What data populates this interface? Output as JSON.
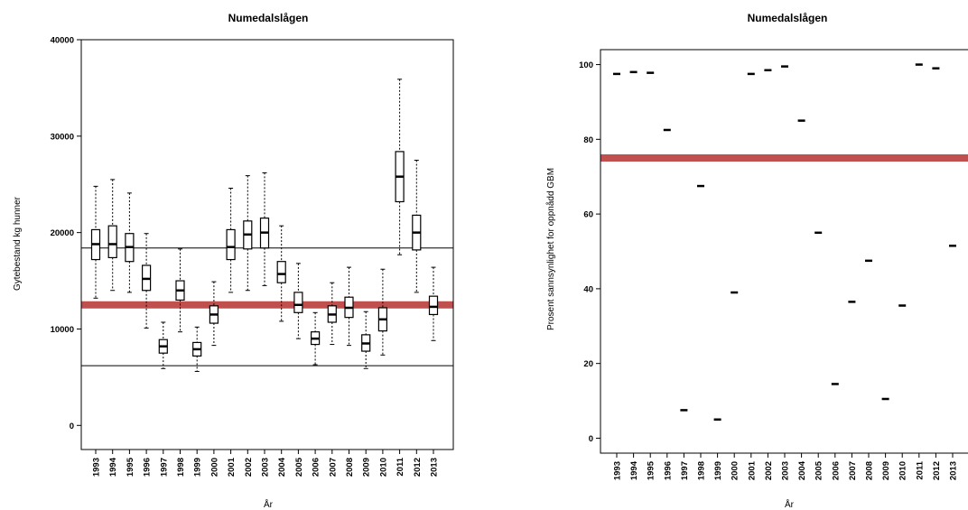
{
  "chart_data": [
    {
      "type": "box",
      "title": "Numedalslågen",
      "xlabel": "År",
      "ylabel": "Gytebestand kg hunner",
      "categories": [
        "1993",
        "1994",
        "1995",
        "1996",
        "1997",
        "1998",
        "1999",
        "2000",
        "2001",
        "2002",
        "2003",
        "2004",
        "2005",
        "2006",
        "2007",
        "2008",
        "2009",
        "2010",
        "2011",
        "2012",
        "2013"
      ],
      "boxes": [
        {
          "min": 13200,
          "q1": 17200,
          "median": 18800,
          "q3": 20300,
          "max": 24800
        },
        {
          "min": 14000,
          "q1": 17400,
          "median": 18800,
          "q3": 20700,
          "max": 25500
        },
        {
          "min": 13800,
          "q1": 17000,
          "median": 18500,
          "q3": 19900,
          "max": 24100
        },
        {
          "min": 10100,
          "q1": 14000,
          "median": 15200,
          "q3": 16600,
          "max": 19900
        },
        {
          "min": 5900,
          "q1": 7500,
          "median": 8200,
          "q3": 8900,
          "max": 10700
        },
        {
          "min": 9700,
          "q1": 13000,
          "median": 14000,
          "q3": 15000,
          "max": 18300
        },
        {
          "min": 5600,
          "q1": 7200,
          "median": 7900,
          "q3": 8600,
          "max": 10200
        },
        {
          "min": 8300,
          "q1": 10600,
          "median": 11500,
          "q3": 12400,
          "max": 14900
        },
        {
          "min": 13800,
          "q1": 17200,
          "median": 18500,
          "q3": 20300,
          "max": 24600
        },
        {
          "min": 14000,
          "q1": 18300,
          "median": 19800,
          "q3": 21200,
          "max": 25900
        },
        {
          "min": 14500,
          "q1": 18400,
          "median": 20000,
          "q3": 21500,
          "max": 26200
        },
        {
          "min": 10800,
          "q1": 14800,
          "median": 15700,
          "q3": 17000,
          "max": 20700
        },
        {
          "min": 9000,
          "q1": 11700,
          "median": 12500,
          "q3": 13800,
          "max": 16800
        },
        {
          "min": 6300,
          "q1": 8400,
          "median": 9000,
          "q3": 9700,
          "max": 11700
        },
        {
          "min": 8400,
          "q1": 10700,
          "median": 11500,
          "q3": 12400,
          "max": 14800
        },
        {
          "min": 8300,
          "q1": 11200,
          "median": 12200,
          "q3": 13300,
          "max": 16400
        },
        {
          "min": 5900,
          "q1": 7700,
          "median": 8500,
          "q3": 9400,
          "max": 11800
        },
        {
          "min": 7300,
          "q1": 9800,
          "median": 11000,
          "q3": 12200,
          "max": 16200
        },
        {
          "min": 17700,
          "q1": 23200,
          "median": 25800,
          "q3": 28400,
          "max": 35900
        },
        {
          "min": 13800,
          "q1": 18200,
          "median": 20000,
          "q3": 21800,
          "max": 27500
        },
        {
          "min": 8800,
          "q1": 11500,
          "median": 12300,
          "q3": 13400,
          "max": 16400
        }
      ],
      "yticks": [
        "0",
        "10000",
        "20000",
        "30000",
        "40000"
      ],
      "ylim": [
        -2500,
        40000
      ],
      "reference_lines": [
        {
          "value": 12500,
          "style": "thick",
          "color": "#c0504d"
        },
        {
          "value": 18400,
          "style": "thin",
          "color": "#000000"
        },
        {
          "value": 6200,
          "style": "thin",
          "color": "#000000"
        }
      ],
      "grid": false
    },
    {
      "type": "scatter",
      "title": "Numedalslågen",
      "xlabel": "År",
      "ylabel": "Prosent sannsynlighet for oppnådd GBM",
      "categories": [
        "1993",
        "1994",
        "1995",
        "1996",
        "1997",
        "1998",
        "1999",
        "2000",
        "2001",
        "2002",
        "2003",
        "2004",
        "2005",
        "2006",
        "2007",
        "2008",
        "2009",
        "2010",
        "2011",
        "2012",
        "2013"
      ],
      "values": [
        97.5,
        98,
        97.8,
        82.5,
        7.5,
        67.5,
        5,
        39,
        97.5,
        98.5,
        99.5,
        85,
        55,
        14.5,
        36.5,
        47.5,
        10.5,
        35.5,
        100,
        99,
        51.5
      ],
      "marker": "dash",
      "yticks": [
        "0",
        "20",
        "40",
        "60",
        "80",
        "100"
      ],
      "ylim": [
        -4,
        104
      ],
      "reference_lines": [
        {
          "value": 75,
          "style": "thick",
          "color": "#c0504d"
        }
      ],
      "grid": false
    }
  ],
  "colors": {
    "reference": "#c0504d",
    "ink": "#000000",
    "background": "#ffffff"
  }
}
